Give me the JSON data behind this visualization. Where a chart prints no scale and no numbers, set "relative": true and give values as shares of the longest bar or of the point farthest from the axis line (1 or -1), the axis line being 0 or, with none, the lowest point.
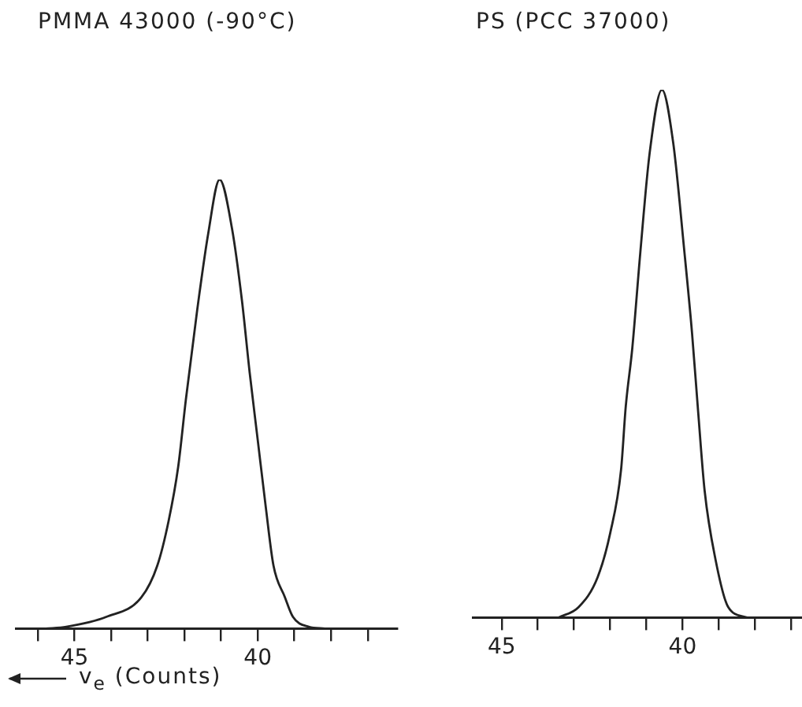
{
  "chart_data": [
    {
      "type": "line",
      "title": "PMMA 43000 (-90°C)",
      "xlabel": "v$_{e}$ (Counts)",
      "relative": true,
      "xlim": [
        46.6,
        36.2
      ],
      "xticks": [
        {
          "value": 46,
          "label": null
        },
        {
          "value": 45,
          "label": "45"
        },
        {
          "value": 44,
          "label": null
        },
        {
          "value": 43,
          "label": null
        },
        {
          "value": 42,
          "label": null
        },
        {
          "value": 41,
          "label": null
        },
        {
          "value": 40,
          "label": "40"
        },
        {
          "value": 39,
          "label": null
        },
        {
          "value": 38,
          "label": null
        },
        {
          "value": 37,
          "label": null
        }
      ],
      "grid": false,
      "legend": false,
      "series": [
        {
          "color": "#222222",
          "x": [
            45.78,
            45.22,
            44.13,
            43.17,
            42.74,
            42.43,
            42.17,
            41.96,
            41.65,
            41.35,
            41.04,
            40.7,
            40.43,
            40.22,
            40.0,
            39.78,
            39.57,
            39.26,
            39.04,
            38.61,
            38.17
          ],
          "values": [
            0,
            0.004,
            0.026,
            0.07,
            0.14,
            0.24,
            0.36,
            0.51,
            0.71,
            0.88,
            1,
            0.89,
            0.73,
            0.57,
            0.42,
            0.27,
            0.14,
            0.07,
            0.026,
            0.004,
            0
          ]
        }
      ]
    },
    {
      "type": "line",
      "title": "PS (PCC 37000)",
      "relative": true,
      "xlim": [
        45.8,
        36.7
      ],
      "xticks": [
        {
          "value": 45,
          "label": "45"
        },
        {
          "value": 44,
          "label": null
        },
        {
          "value": 43,
          "label": null
        },
        {
          "value": 42,
          "label": null
        },
        {
          "value": 41,
          "label": null
        },
        {
          "value": 40,
          "label": "40"
        },
        {
          "value": 39,
          "label": null
        },
        {
          "value": 38,
          "label": null
        },
        {
          "value": 37,
          "label": null
        }
      ],
      "grid": false,
      "legend": false,
      "series": [
        {
          "color": "#222222",
          "x": [
            43.43,
            42.87,
            42.35,
            42.0,
            41.7,
            41.57,
            41.39,
            41.17,
            40.91,
            40.57,
            40.26,
            39.96,
            39.74,
            39.57,
            39.39,
            39.09,
            38.74,
            38.22
          ],
          "values": [
            0,
            0.02,
            0.076,
            0.16,
            0.28,
            0.4,
            0.51,
            0.69,
            0.88,
            1,
            0.9,
            0.7,
            0.54,
            0.39,
            0.24,
            0.11,
            0.02,
            0
          ]
        }
      ]
    }
  ]
}
